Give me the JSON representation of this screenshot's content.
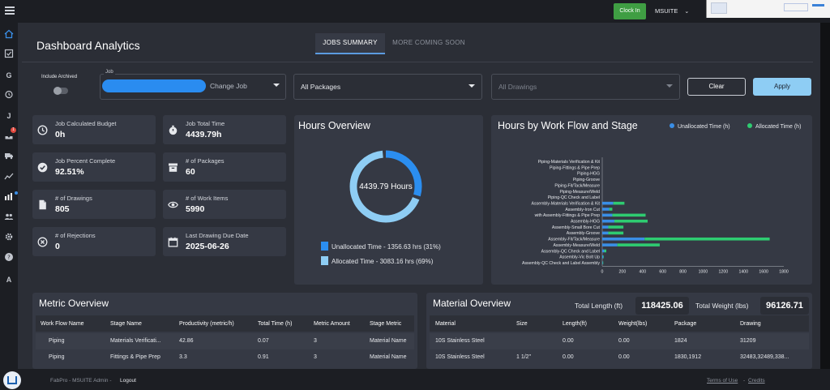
{
  "topbar": {
    "clock_in_label": "Clock In",
    "user_menu_label": "MSUITE",
    "user_menu_chevron": "⌄"
  },
  "rail": {
    "icons": [
      "home-icon",
      "checkbox-icon",
      "g-icon",
      "alarm-icon",
      "j-icon",
      "inbox-icon",
      "truck-icon",
      "trend-icon",
      "analytics-icon",
      "users-icon",
      "gear-icon",
      "help-icon",
      "a-icon"
    ],
    "badge_count": "1"
  },
  "header": {
    "title": "Dashboard Analytics",
    "tabs": [
      "JOBS SUMMARY",
      "MORE COMING SOON"
    ]
  },
  "filters": {
    "include_archived_label": "Include Archived",
    "job_label": "Job",
    "change_job_label": "Change Job",
    "packages_value": "All Packages",
    "drawings_value": "All Drawings",
    "clear_label": "Clear",
    "apply_label": "Apply"
  },
  "stats": [
    {
      "label": "Job Calculated Budget",
      "value": "0h",
      "icon": "clock-icon"
    },
    {
      "label": "Job Total Time",
      "value": "4439.79h",
      "icon": "stopwatch-icon"
    },
    {
      "label": "Job Percent Complete",
      "value": "92.51%",
      "icon": "check-circle-icon"
    },
    {
      "label": "# of Packages",
      "value": "60",
      "icon": "archive-icon"
    },
    {
      "label": "# of Drawings",
      "value": "805",
      "icon": "document-icon"
    },
    {
      "label": "# of Work Items",
      "value": "5990",
      "icon": "eye-icon"
    },
    {
      "label": "# of Rejections",
      "value": "0",
      "icon": "x-circle-icon"
    },
    {
      "label": "Last Drawing Due Date",
      "value": "2025-06-26",
      "icon": "calendar-icon"
    }
  ],
  "hours_overview": {
    "title": "Hours Overview",
    "center_text": "4439.79 Hours",
    "legend": [
      "Unallocated Time - 1356.63 hrs (31%)",
      "Allocated Time - 3083.16 hrs (69%)"
    ],
    "colors": {
      "unallocated": "#2b8ef0",
      "allocated": "#8ecdf4"
    },
    "unallocated_fraction": 0.31
  },
  "workflow_chart": {
    "title": "Hours by Work Flow and Stage",
    "legend": [
      "Unallocated Time (h)",
      "Allocated Time (h)"
    ],
    "colors": {
      "unallocated": "#3a8ee6",
      "allocated": "#2ecc71"
    }
  },
  "chart_data": {
    "type": "bar",
    "orientation": "horizontal",
    "stacked": true,
    "categories": [
      "Piping-Materials Verification & Kit",
      "Piping-Fittings & Pipe Prep",
      "Piping-HGG",
      "Piping-Groove",
      "Piping-Fit/Tack/Measure",
      "Piping-Measure/Weld",
      "Piping-QC Check and Label",
      "Assembly-Materials Verification & Kit",
      "Assembly-Iron Cut",
      "with Assembly-Fittings & Pipe Prep",
      "Assembly-HGG",
      "Assembly-Small Bore Cut",
      "Assembly-Groove",
      "Assembly-Fit/Tack/Measure",
      "Assembly-Measure/Weld",
      "Assembly-QC Check and Label",
      "Assembly-Vic Bolt Up",
      "Assembly-QC Check and Label Assembly"
    ],
    "series": [
      {
        "name": "Unallocated Time (h)",
        "values": [
          0,
          0,
          0,
          0,
          0,
          0,
          0,
          110,
          70,
          100,
          120,
          60,
          60,
          420,
          150,
          20,
          10,
          5
        ]
      },
      {
        "name": "Allocated Time (h)",
        "values": [
          0,
          0,
          0,
          0,
          0,
          0,
          0,
          110,
          30,
          330,
          330,
          150,
          150,
          1240,
          420,
          20,
          5,
          5
        ]
      }
    ],
    "xticks": [
      "0",
      "200",
      "400",
      "600",
      "800",
      "1000",
      "1200",
      "1400",
      "1600",
      "1800"
    ],
    "xlim": [
      0,
      1800
    ],
    "legend_position": "top-right"
  },
  "metric_overview": {
    "title": "Metric Overview",
    "columns": [
      "Work Flow Name",
      "Stage Name",
      "Productivity (metric/h)",
      "Total Time (h)",
      "Metric Amount",
      "Stage Metric"
    ],
    "rows": [
      [
        "Piping",
        "Materials Verificati...",
        "42.86",
        "0.07",
        "3",
        "Material Name"
      ],
      [
        "Piping",
        "Fittings & Pipe Prep",
        "3.3",
        "0.91",
        "3",
        "Material Name"
      ]
    ]
  },
  "material_overview": {
    "title": "Material Overview",
    "total_length_label": "Total Length (ft)",
    "total_length_value": "118425.06",
    "total_weight_label": "Total Weight (lbs)",
    "total_weight_value": "96126.71",
    "columns": [
      "Material",
      "Size",
      "Length(ft)",
      "Weight(lbs)",
      "Package",
      "Drawing"
    ],
    "rows": [
      [
        "10S Stainless Steel",
        "",
        "0.00",
        "0.00",
        "1824",
        "31209"
      ],
      [
        "10S Stainless Steel",
        "1 1/2\"",
        "0.00",
        "0.00",
        "1830,1912",
        "32483,32489,338..."
      ]
    ]
  },
  "footer": {
    "user_text": "FabPro - MSUITE Admin -",
    "logout_label": "Logout",
    "terms_label": "Terms of Use",
    "separator": "-",
    "credits_label": "Credits"
  }
}
